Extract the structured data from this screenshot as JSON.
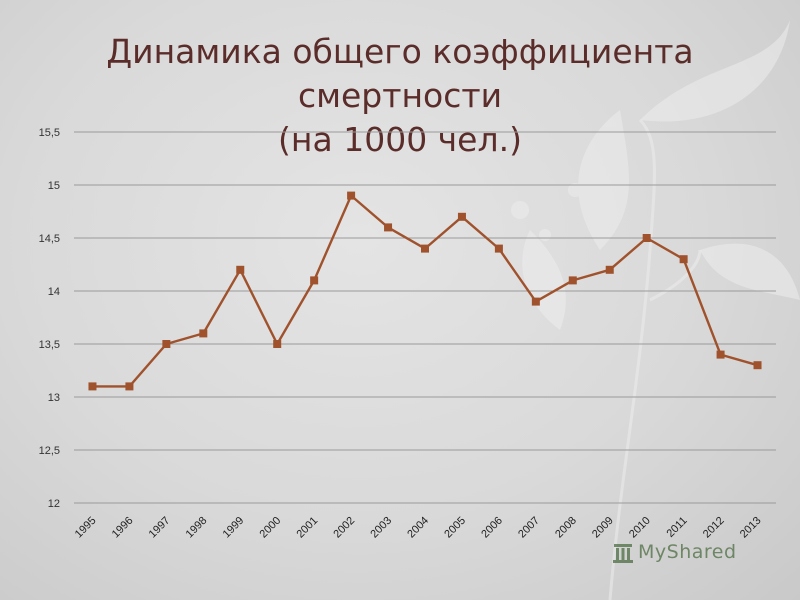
{
  "slide": {
    "title_line1": "Динамика общего коэффициента смертности",
    "title_line2": "(на 1000 чел.)",
    "watermark": "MyShared",
    "watermark_icon": "building-icon"
  },
  "colors": {
    "series": "#a0522d",
    "title": "#5b2d2a",
    "grid": "#9a9a9a"
  },
  "chart_data": {
    "type": "line",
    "title": "Динамика общего коэффициента смертности (на 1000 чел.)",
    "xlabel": "",
    "ylabel": "",
    "categories": [
      "1995",
      "1996",
      "1997",
      "1998",
      "1999",
      "2000",
      "2001",
      "2002",
      "2003",
      "2004",
      "2005",
      "2006",
      "2007",
      "2008",
      "2009",
      "2010",
      "2011",
      "2012",
      "2013"
    ],
    "series": [
      {
        "values": [
          13.1,
          13.1,
          13.5,
          13.6,
          14.2,
          13.5,
          14.1,
          14.9,
          14.6,
          14.4,
          14.7,
          14.4,
          13.9,
          14.1,
          14.2,
          14.5,
          14.3,
          13.4,
          13.3
        ]
      }
    ],
    "ylim": [
      12,
      15.5
    ],
    "yticks": [
      12,
      12.5,
      13,
      13.5,
      14,
      14.5,
      15,
      15.5
    ],
    "ytick_labels": [
      "12",
      "12,5",
      "13",
      "13,5",
      "14",
      "14,5",
      "15",
      "15,5"
    ],
    "grid": true,
    "legend": "none",
    "marker": "square"
  }
}
